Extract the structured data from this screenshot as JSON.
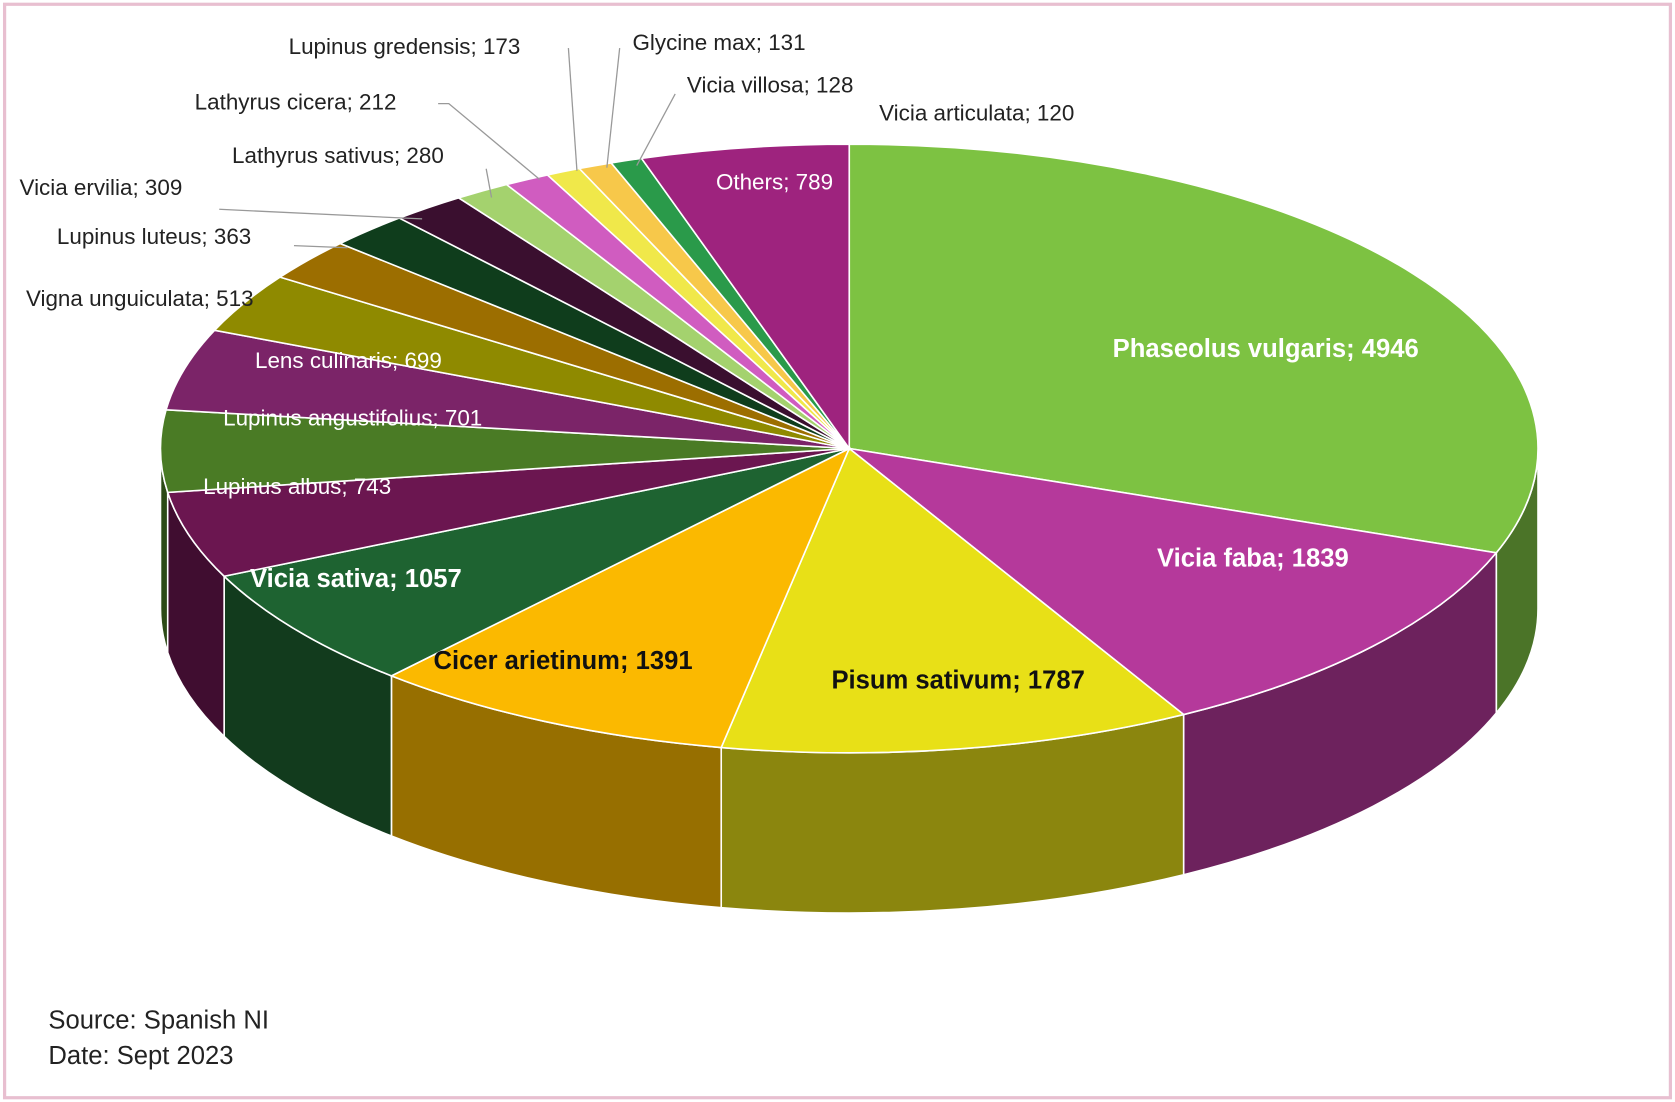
{
  "chart_data": {
    "type": "pie3d",
    "categories": [
      "Phaseolus vulgaris",
      "Vicia faba",
      "Pisum sativum",
      "Cicer arietinum",
      "Vicia sativa",
      "Lupinus albus",
      "Lupinus angustifolius",
      "Lens culinaris",
      "Vigna unguiculata",
      "Lupinus luteus",
      "Vicia ervilia",
      "Lathyrus sativus",
      "Lathyrus cicera",
      "Lupinus gredensis",
      "Glycine max",
      "Vicia villosa",
      "Vicia articulata",
      "Others"
    ],
    "values": [
      4946,
      1839,
      1787,
      1391,
      1057,
      743,
      701,
      699,
      513,
      363,
      309,
      280,
      212,
      173,
      131,
      128,
      120,
      789
    ],
    "colors": [
      "#7dc242",
      "#b5399b",
      "#e8e017",
      "#fbb900",
      "#1e6331",
      "#6b1650",
      "#4a7b25",
      "#7b2468",
      "#8f8a00",
      "#9c6e00",
      "#0f3d1c",
      "#3a0f2f",
      "#a4d26e",
      "#d05cc0",
      "#f0e84a",
      "#f7c84a",
      "#2a9a4a",
      "#9e237e"
    ],
    "label_separator": "; ",
    "source": "Source: Spanish NI",
    "date": "Date: Sept 2023"
  }
}
